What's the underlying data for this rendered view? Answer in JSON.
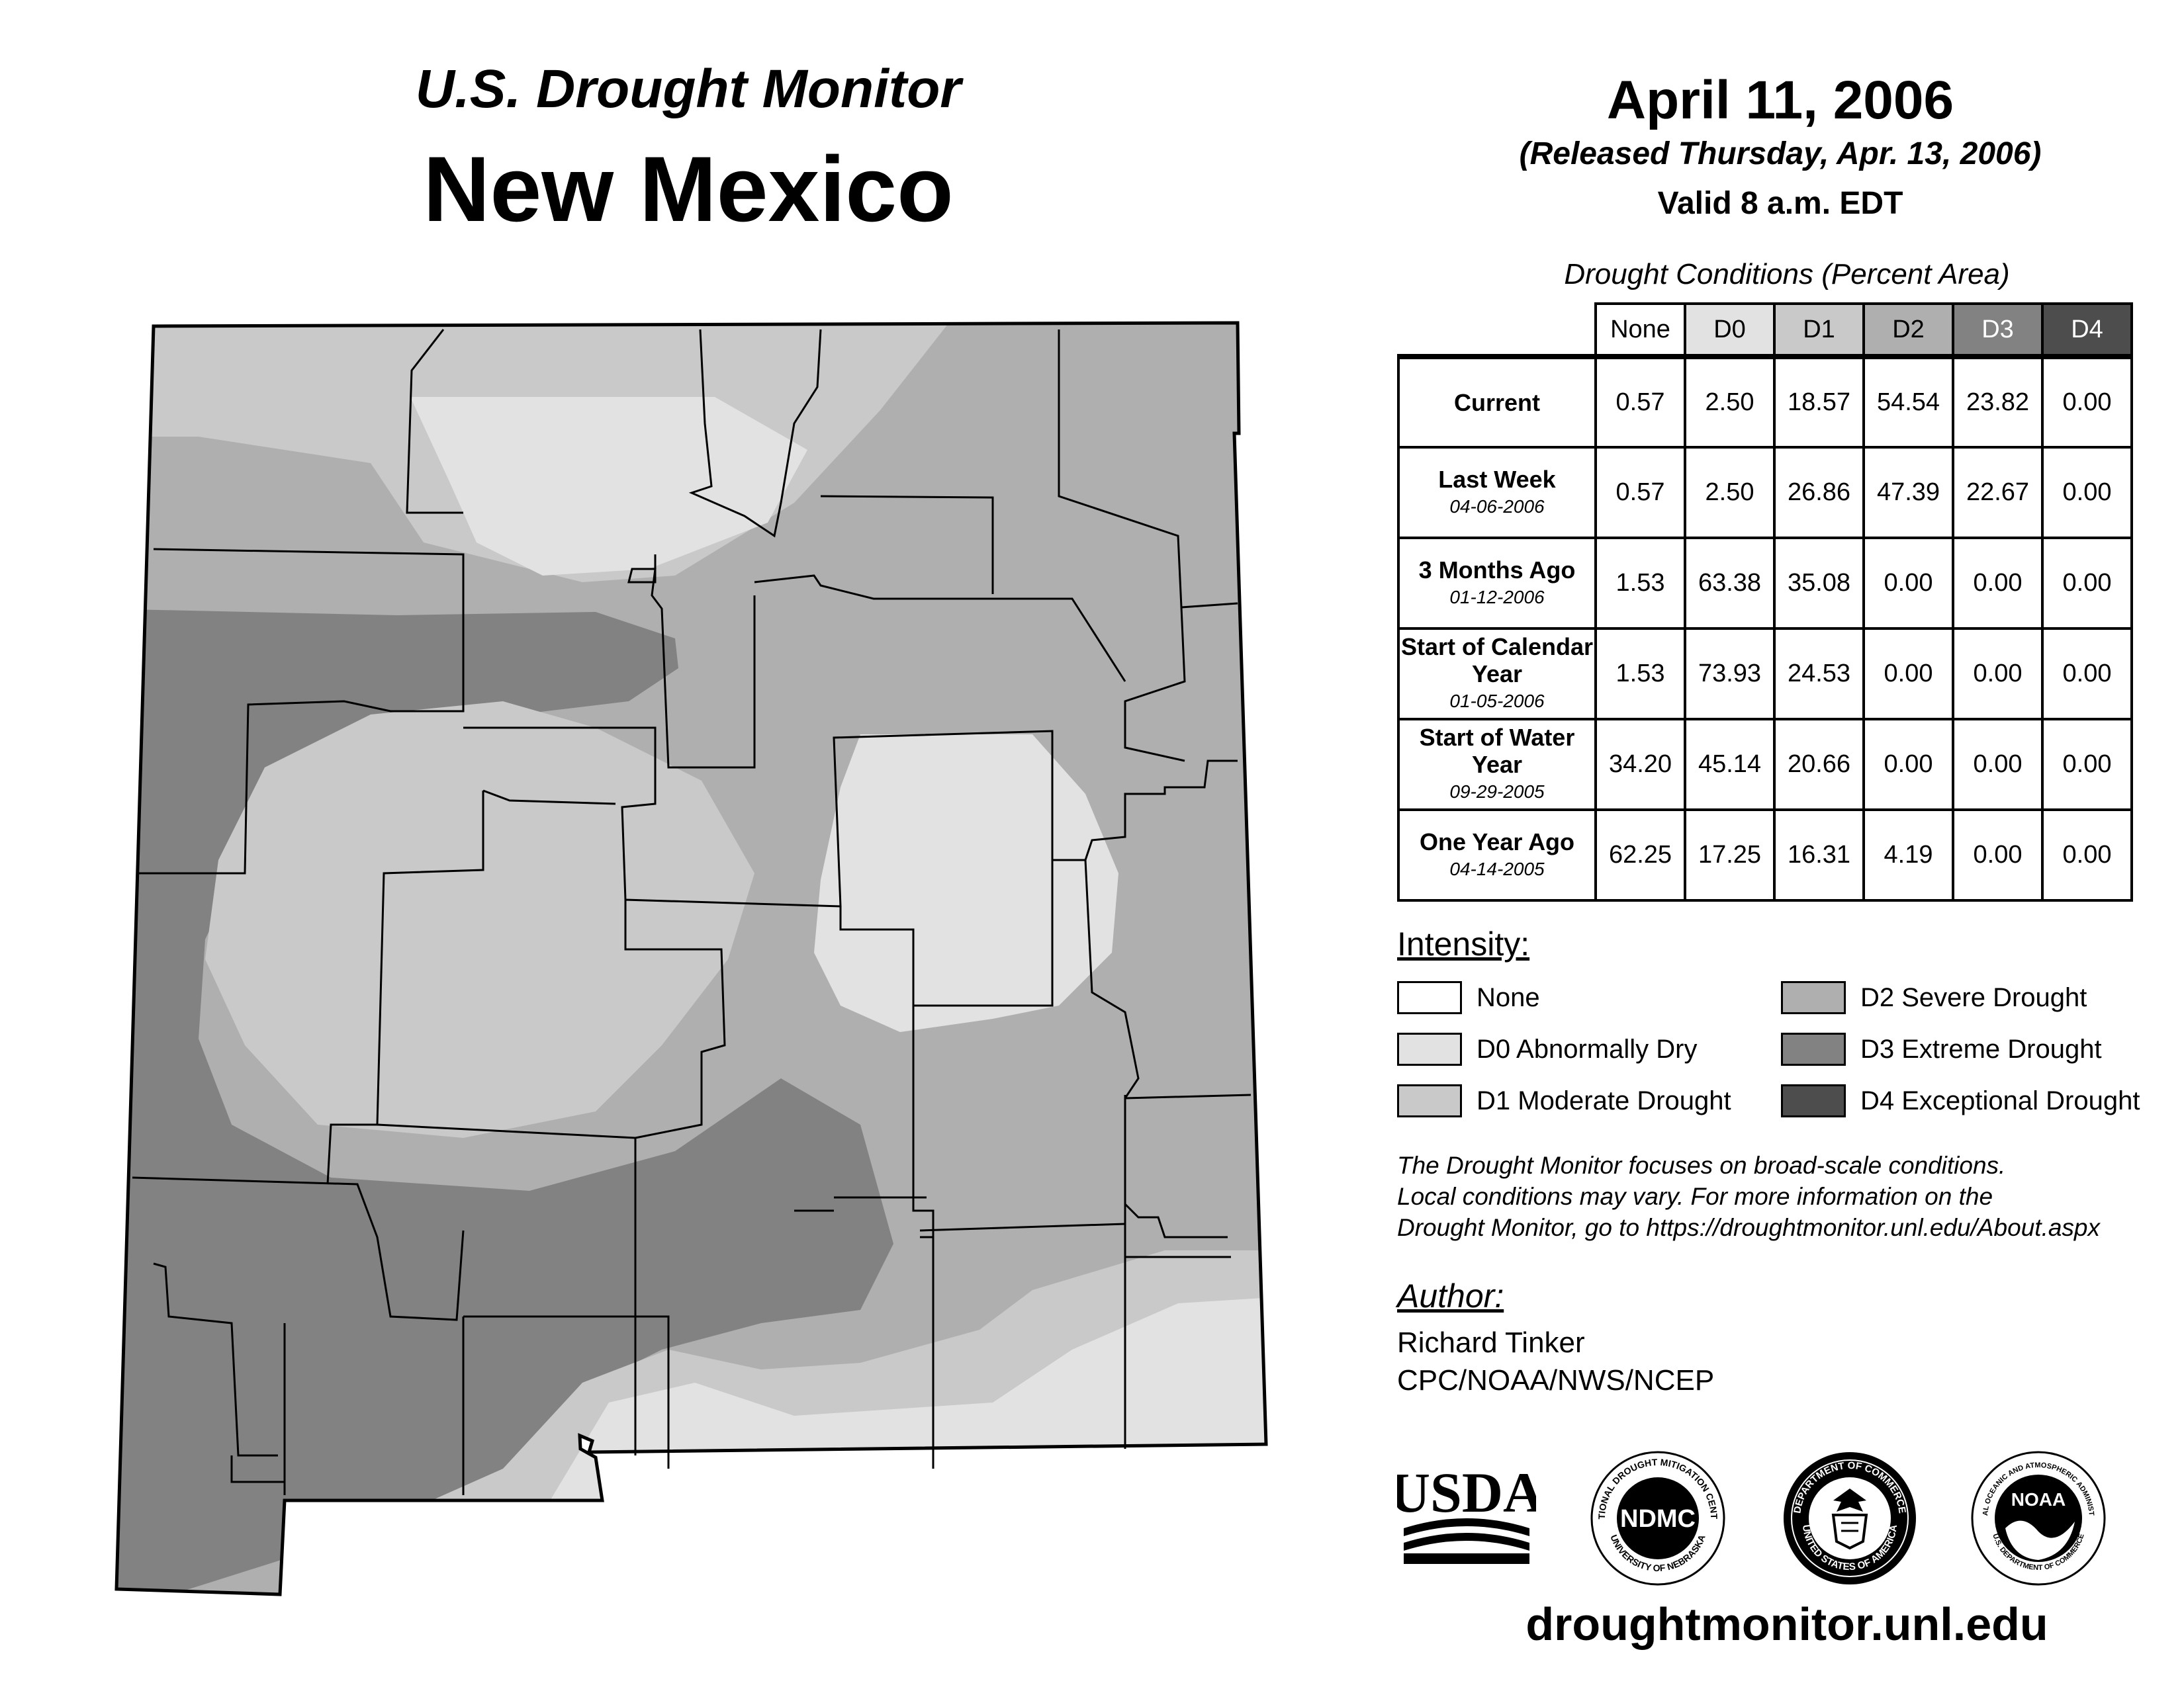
{
  "header": {
    "subtitle": "U.S. Drought Monitor",
    "state": "New Mexico",
    "date": "April 11, 2006",
    "released": "(Released Thursday, Apr. 13, 2006)",
    "valid": "Valid 8 a.m. EDT"
  },
  "table": {
    "title": "Drought Conditions (Percent Area)",
    "columns": [
      "None",
      "D0",
      "D1",
      "D2",
      "D3",
      "D4"
    ],
    "rows": [
      {
        "label": "Current",
        "date": "",
        "values": [
          "0.57",
          "2.50",
          "18.57",
          "54.54",
          "23.82",
          "0.00"
        ]
      },
      {
        "label": "Last Week",
        "date": "04-06-2006",
        "values": [
          "0.57",
          "2.50",
          "26.86",
          "47.39",
          "22.67",
          "0.00"
        ]
      },
      {
        "label": "3 Months Ago",
        "date": "01-12-2006",
        "values": [
          "1.53",
          "63.38",
          "35.08",
          "0.00",
          "0.00",
          "0.00"
        ]
      },
      {
        "label": "Start of Calendar Year",
        "date": "01-05-2006",
        "values": [
          "1.53",
          "73.93",
          "24.53",
          "0.00",
          "0.00",
          "0.00"
        ]
      },
      {
        "label": "Start of Water Year",
        "date": "09-29-2005",
        "values": [
          "34.20",
          "45.14",
          "20.66",
          "0.00",
          "0.00",
          "0.00"
        ]
      },
      {
        "label": "One Year Ago",
        "date": "04-14-2005",
        "values": [
          "62.25",
          "17.25",
          "16.31",
          "4.19",
          "0.00",
          "0.00"
        ]
      }
    ]
  },
  "legend": {
    "title": "Intensity:",
    "items": [
      {
        "label": "None",
        "color": "#ffffff"
      },
      {
        "label": "D0 Abnormally Dry",
        "color": "#e2e2e2"
      },
      {
        "label": "D1 Moderate Drought",
        "color": "#c9c9c9"
      },
      {
        "label": "D2 Severe Drought",
        "color": "#afafaf"
      },
      {
        "label": "D3 Extreme Drought",
        "color": "#828282"
      },
      {
        "label": "D4 Exceptional Drought",
        "color": "#4d4d4d"
      }
    ]
  },
  "header_colors": [
    "#ffffff",
    "#e2e2e2",
    "#c9c9c9",
    "#afafaf",
    "#828282",
    "#4d4d4d"
  ],
  "note": {
    "line1": "The Drought Monitor focuses on broad-scale conditions.",
    "line2": "Local conditions may vary. For more information on the",
    "line3": "Drought Monitor, go to https://droughtmonitor.unl.edu/About.aspx"
  },
  "author": {
    "title": "Author:",
    "name": "Richard Tinker",
    "org": "CPC/NOAA/NWS/NCEP"
  },
  "logos": {
    "usda": "USDA",
    "ndmc": "NDMC",
    "ndmc_ring_top": "NATIONAL DROUGHT MITIGATION CENTER",
    "ndmc_ring_bottom": "UNIVERSITY OF NEBRASKA",
    "doc_ring_top": "DEPARTMENT OF COMMERCE",
    "doc_ring_bottom": "UNITED STATES OF AMERICA",
    "noaa": "NOAA",
    "noaa_ring_top": "NATIONAL OCEANIC AND ATMOSPHERIC ADMINISTRATION",
    "noaa_ring_bottom": "U.S. DEPARTMENT OF COMMERCE"
  },
  "website": "droughtmonitor.unl.edu"
}
